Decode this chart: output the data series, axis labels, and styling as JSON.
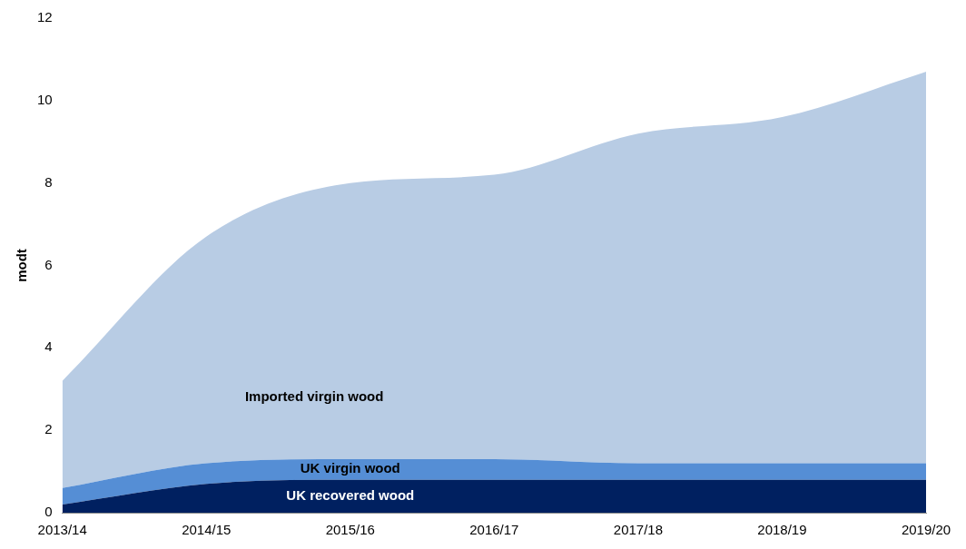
{
  "chart_data": {
    "type": "area",
    "stacked": true,
    "ylabel": "modt",
    "categories": [
      "2013/14",
      "2014/15",
      "2015/16",
      "2016/17",
      "2017/18",
      "2018/19",
      "2019/20"
    ],
    "series": [
      {
        "name": "UK recovered wood",
        "color": "#002060",
        "values": [
          0.2,
          0.7,
          0.8,
          0.8,
          0.8,
          0.8,
          0.8
        ]
      },
      {
        "name": "UK virgin wood",
        "color": "#558ed5",
        "values": [
          0.4,
          0.5,
          0.5,
          0.5,
          0.4,
          0.4,
          0.4
        ]
      },
      {
        "name": "Imported virgin wood",
        "color": "#b8cce4",
        "values": [
          2.6,
          5.5,
          6.7,
          6.9,
          8.0,
          8.4,
          9.5
        ]
      }
    ],
    "ylim": [
      0,
      12
    ],
    "yticks": [
      0,
      2,
      4,
      6,
      8,
      10,
      12
    ],
    "grid": false,
    "legend": false
  }
}
